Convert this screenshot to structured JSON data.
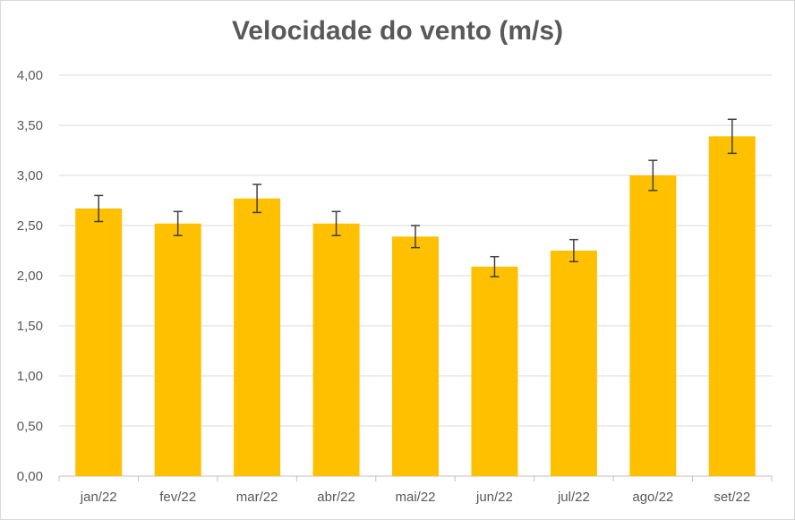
{
  "chart_data": {
    "type": "bar",
    "title": "Velocidade do vento (m/s)",
    "xlabel": "",
    "ylabel": "",
    "categories": [
      "jan/22",
      "fev/22",
      "mar/22",
      "abr/22",
      "mai/22",
      "jun/22",
      "jul/22",
      "ago/22",
      "set/22"
    ],
    "values": [
      2.67,
      2.52,
      2.77,
      2.52,
      2.39,
      2.09,
      2.25,
      3.0,
      3.39
    ],
    "error": [
      0.13,
      0.12,
      0.14,
      0.12,
      0.11,
      0.1,
      0.11,
      0.15,
      0.17
    ],
    "ylim": [
      0,
      4
    ],
    "yticks": [
      "0,00",
      "0,50",
      "1,00",
      "1,50",
      "2,00",
      "2,50",
      "3,00",
      "3,50",
      "4,00"
    ],
    "ytick_values": [
      0,
      0.5,
      1,
      1.5,
      2,
      2.5,
      3,
      3.5,
      4
    ],
    "grid": true,
    "legend": "none",
    "colors": {
      "bar": "#FFC000",
      "grid": "#d9d9d9",
      "axis": "#bfbfbf",
      "error": "#404040",
      "text": "#595959"
    }
  }
}
